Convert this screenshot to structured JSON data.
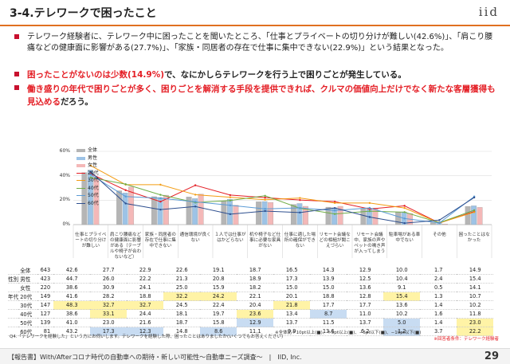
{
  "header": {
    "title": "3-4.テレワークで困ったこと",
    "logo": "iid"
  },
  "bullets": [
    {
      "parts": [
        {
          "t": "テレワーク経験者に、テレワーク中に困ったことを聞いたところ、「仕事とプライベートの切り分けが難しい(42.6%)」、「肩こり腰痛などの健康面に影響がある(27.7%)」、「家族・同居者の存在で仕事に集中できない(22.9%)」という結果となった。",
          "s": "n"
        }
      ]
    },
    {
      "parts": [
        {
          "t": "困ったことがないのは少数(14.9%)",
          "s": "r"
        },
        {
          "t": "で、なにかしらテレワークを行う上で困りごとが発生している。",
          "s": "b"
        }
      ]
    },
    {
      "parts": [
        {
          "t": "働き盛りの年代で困りごとが多く、困りごとを解消する手段を提供できれば、クルマの価値向上だけでなく新たな客層獲得も見込める",
          "s": "r"
        },
        {
          "t": "だろう。",
          "s": "b"
        }
      ]
    }
  ],
  "chart_data": {
    "type": "bar",
    "ylim": [
      0,
      60
    ],
    "yticks": [
      "0%",
      "20%",
      "40%",
      "60%"
    ],
    "categories": [
      "仕事とプライベートの切り分けが難しい",
      "肩こり腰痛などの健康面に影響がある（テーブルや椅子が合わないなど）",
      "家族・同居者の存在で仕事に集中できない",
      "通信環境が良くない",
      "１人では仕事がはかどらない",
      "机や椅子など仕事に必要な家具がない",
      "仕事に適した場所の確保ができない",
      "リモート会議などの相槌が聞こえづらい",
      "リモート会議中、家族の声やペットの鳴き声が入ってしまう",
      "駐車場がある車中でない",
      "その他",
      "困ったことはなかった"
    ],
    "series": [
      {
        "name": "全体",
        "group": "",
        "n": "643",
        "color": "#b5b5b5",
        "kind": "bar",
        "values": [
          42.6,
          27.7,
          22.9,
          22.6,
          19.1,
          18.7,
          16.5,
          14.3,
          12.9,
          10.0,
          1.7,
          14.9
        ]
      },
      {
        "name": "男性",
        "group": "性別",
        "n": "423",
        "color": "#9dc3e6",
        "kind": "bar",
        "values": [
          44.7,
          26.0,
          22.2,
          21.3,
          20.8,
          18.9,
          17.3,
          13.9,
          12.5,
          10.4,
          2.4,
          15.4
        ]
      },
      {
        "name": "女性",
        "group": "性別",
        "n": "220",
        "color": "#f4b8b8",
        "kind": "bar",
        "values": [
          38.6,
          30.9,
          24.1,
          25.0,
          15.9,
          18.2,
          15.0,
          15.0,
          13.6,
          9.1,
          0.5,
          14.1
        ]
      },
      {
        "name": "20代",
        "group": "年代",
        "n": "149",
        "color": "#e41e25",
        "kind": "line",
        "values": [
          41.6,
          28.2,
          18.8,
          32.2,
          24.2,
          22.1,
          20.1,
          18.8,
          12.8,
          15.4,
          1.3,
          10.7
        ]
      },
      {
        "name": "30代",
        "group": "年代",
        "n": "147",
        "color": "#f39c12",
        "kind": "line",
        "values": [
          48.3,
          32.7,
          32.7,
          24.5,
          22.4,
          20.4,
          21.8,
          17.7,
          17.7,
          13.6,
          1.4,
          10.2
        ]
      },
      {
        "name": "40代",
        "group": "年代",
        "n": "127",
        "color": "#70ad47",
        "kind": "line",
        "values": [
          38.6,
          33.1,
          24.4,
          18.1,
          19.7,
          23.6,
          13.4,
          8.7,
          11.0,
          10.2,
          1.6,
          11.8
        ]
      },
      {
        "name": "50代",
        "group": "年代",
        "n": "139",
        "color": "#5b9bd5",
        "kind": "line",
        "values": [
          41.0,
          23.0,
          21.6,
          18.7,
          15.8,
          12.9,
          13.7,
          11.5,
          13.7,
          5.0,
          1.4,
          23.0
        ]
      },
      {
        "name": "60代",
        "group": "年代",
        "n": "81",
        "color": "#2e4f8f",
        "kind": "line",
        "values": [
          43.2,
          17.3,
          12.3,
          14.8,
          8.6,
          11.1,
          9.9,
          13.6,
          6.2,
          1.2,
          3.7,
          22.2
        ]
      }
    ]
  },
  "table": {
    "total_label": "全体",
    "highlights": {
      "3": {
        "3": "y",
        "4": "y",
        "9": "y"
      },
      "4": {
        "0": "y",
        "1": "y",
        "2": "y",
        "6": "y"
      },
      "5": {
        "1": "y",
        "5": "y",
        "7": "b"
      },
      "6": {
        "5": "b",
        "9": "b",
        "11": "y"
      },
      "7": {
        "1": "b",
        "2": "b",
        "4": "b",
        "9": "b",
        "11": "y"
      }
    }
  },
  "notes": {
    "q4": "Q4.「テレワークを経験した」という方にお伺いします。テレワークを経験した際、困ったことはありましたか(いくつでもお答えください)",
    "legend": "※全体比＋10pt以上(■)、＋5pt以上(■)、−5pt以下(■)、−10pt以下(■)",
    "condition": "※回答者条件：テレワーク経験者"
  },
  "footer": {
    "text": "【報告書】With/Afterコロナ時代の自動車への期待・新しい可能性～自動車ニーズ調査～　|　IID, Inc.",
    "page": "29"
  }
}
